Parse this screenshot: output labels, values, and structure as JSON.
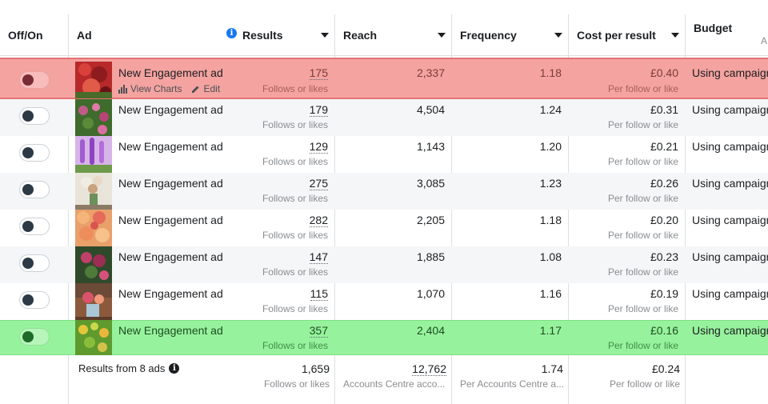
{
  "columns": {
    "toggle": "Off/On",
    "ad": "Ad",
    "results": "Results",
    "reach": "Reach",
    "frequency": "Frequency",
    "cost": "Cost per result",
    "budget": "Budget",
    "budget_sub": "A"
  },
  "row_actions": {
    "view_charts": "View Charts",
    "edit": "Edit"
  },
  "rows": [
    {
      "name": "New Engagement ad",
      "results": "175",
      "results_sub": "Follows or likes",
      "reach": "2,337",
      "frequency": "1.18",
      "cost": "£0.40",
      "cost_sub": "Per follow or like",
      "budget": "Using campaign",
      "toggle_on": false,
      "highlight": "red"
    },
    {
      "name": "New Engagement ad",
      "results": "179",
      "results_sub": "Follows or likes",
      "reach": "4,504",
      "frequency": "1.24",
      "cost": "£0.31",
      "cost_sub": "Per follow or like",
      "budget": "Using campaign",
      "toggle_on": false
    },
    {
      "name": "New Engagement ad",
      "results": "129",
      "results_sub": "Follows or likes",
      "reach": "1,143",
      "frequency": "1.20",
      "cost": "£0.21",
      "cost_sub": "Per follow or like",
      "budget": "Using campaign",
      "toggle_on": false
    },
    {
      "name": "New Engagement ad",
      "results": "275",
      "results_sub": "Follows or likes",
      "reach": "3,085",
      "frequency": "1.23",
      "cost": "£0.26",
      "cost_sub": "Per follow or like",
      "budget": "Using campaign",
      "toggle_on": false
    },
    {
      "name": "New Engagement ad",
      "results": "282",
      "results_sub": "Follows or likes",
      "reach": "2,205",
      "frequency": "1.18",
      "cost": "£0.20",
      "cost_sub": "Per follow or like",
      "budget": "Using campaign",
      "toggle_on": false
    },
    {
      "name": "New Engagement ad",
      "results": "147",
      "results_sub": "Follows or likes",
      "reach": "1,885",
      "frequency": "1.08",
      "cost": "£0.23",
      "cost_sub": "Per follow or like",
      "budget": "Using campaign",
      "toggle_on": false
    },
    {
      "name": "New Engagement ad",
      "results": "115",
      "results_sub": "Follows or likes",
      "reach": "1,070",
      "frequency": "1.16",
      "cost": "£0.19",
      "cost_sub": "Per follow or like",
      "budget": "Using campaign",
      "toggle_on": false
    },
    {
      "name": "New Engagement ad",
      "results": "357",
      "results_sub": "Follows or likes",
      "reach": "2,404",
      "frequency": "1.17",
      "cost": "£0.16",
      "cost_sub": "Per follow or like",
      "budget": "Using campaign",
      "toggle_on": false,
      "highlight": "green"
    }
  ],
  "footer": {
    "label": "Results from 8 ads",
    "results": "1,659",
    "results_sub": "Follows or likes",
    "reach": "12,762",
    "reach_sub": "Accounts Centre acco...",
    "frequency": "1.74",
    "frequency_sub": "Per Accounts Centre a...",
    "cost": "£0.24",
    "cost_sub": "Per follow or like"
  },
  "colors": {
    "row_highlight_red": "#f4a3a0",
    "row_highlight_green": "#97f29d",
    "info_blue": "#1877f2"
  }
}
